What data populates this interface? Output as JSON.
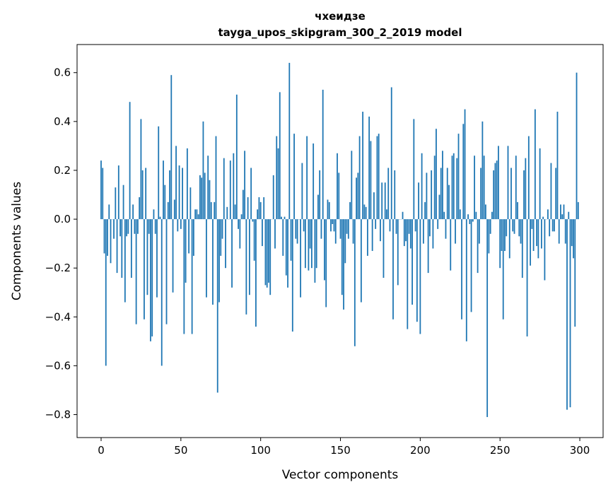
{
  "chart_data": {
    "type": "bar",
    "title_line1": "чхеидзе",
    "title_line2": "tayga_upos_skipgram_300_2_2019 model",
    "xlabel": "Vector components",
    "ylabel": "Components values",
    "xlim": [
      -15.06,
      314.6
    ],
    "ylim": [
      -0.894,
      0.715
    ],
    "xticks": [
      0,
      50,
      100,
      150,
      200,
      250,
      300
    ],
    "xtick_labels": [
      "0",
      "50",
      "100",
      "150",
      "200",
      "250",
      "300"
    ],
    "yticks": [
      0.6,
      0.4,
      0.2,
      0.0,
      -0.2,
      -0.4,
      -0.6,
      -0.8
    ],
    "ytick_labels": [
      "0.6",
      "0.4",
      "0.2",
      "0.0",
      "−0.2",
      "−0.4",
      "−0.6",
      "−0.8"
    ],
    "grid": false,
    "color": "#1f77b4",
    "values": [
      0.24,
      0.21,
      -0.14,
      -0.6,
      -0.15,
      0.06,
      -0.18,
      0.0,
      -0.08,
      0.13,
      -0.22,
      0.22,
      -0.07,
      -0.24,
      0.14,
      -0.34,
      -0.07,
      -0.06,
      0.48,
      -0.24,
      0.06,
      -0.06,
      -0.43,
      -0.06,
      0.09,
      0.41,
      0.2,
      -0.41,
      0.21,
      -0.31,
      -0.06,
      -0.5,
      -0.48,
      0.04,
      -0.06,
      -0.32,
      0.38,
      0.01,
      -0.6,
      0.24,
      0.14,
      -0.43,
      0.07,
      0.2,
      0.59,
      -0.3,
      0.08,
      0.3,
      -0.05,
      0.22,
      -0.04,
      0.21,
      -0.47,
      -0.26,
      0.29,
      -0.14,
      0.13,
      -0.47,
      -0.15,
      0.04,
      0.04,
      0.02,
      0.18,
      0.17,
      0.4,
      0.19,
      -0.32,
      0.26,
      0.16,
      0.07,
      -0.35,
      0.07,
      0.34,
      -0.71,
      -0.34,
      -0.15,
      -0.08,
      0.25,
      -0.2,
      0.05,
      0.0,
      0.24,
      -0.28,
      0.27,
      0.06,
      0.51,
      -0.04,
      -0.12,
      0.02,
      0.12,
      0.28,
      -0.39,
      0.09,
      -0.31,
      0.21,
      -0.01,
      -0.17,
      -0.44,
      0.04,
      0.09,
      0.07,
      -0.11,
      0.09,
      -0.27,
      -0.28,
      -0.26,
      -0.31,
      0.0,
      0.18,
      -0.12,
      0.34,
      0.29,
      0.52,
      0.01,
      -0.15,
      0.01,
      -0.23,
      -0.28,
      0.64,
      -0.17,
      -0.46,
      0.35,
      -0.08,
      -0.1,
      0.0,
      -0.32,
      0.23,
      -0.05,
      -0.2,
      0.34,
      -0.21,
      -0.12,
      -0.2,
      0.31,
      -0.26,
      -0.2,
      0.1,
      0.2,
      -0.08,
      0.53,
      -0.25,
      -0.36,
      0.08,
      0.07,
      -0.05,
      -0.02,
      -0.05,
      -0.1,
      0.27,
      0.19,
      -0.08,
      -0.31,
      -0.37,
      -0.18,
      -0.06,
      -0.08,
      0.07,
      0.28,
      -0.1,
      -0.52,
      0.17,
      0.19,
      0.34,
      -0.34,
      0.44,
      0.06,
      0.05,
      -0.15,
      0.42,
      0.32,
      -0.13,
      0.11,
      -0.04,
      0.34,
      0.35,
      -0.09,
      0.15,
      -0.24,
      0.15,
      0.04,
      0.21,
      -0.05,
      0.54,
      -0.41,
      0.2,
      -0.06,
      -0.27,
      0.0,
      0.0,
      0.03,
      -0.11,
      -0.09,
      -0.45,
      -0.06,
      -0.12,
      -0.35,
      0.41,
      -0.05,
      -0.42,
      0.15,
      -0.47,
      0.27,
      -0.1,
      0.07,
      0.19,
      -0.22,
      -0.07,
      0.2,
      -0.12,
      0.26,
      0.37,
      -0.04,
      0.1,
      0.21,
      0.28,
      0.03,
      -0.08,
      0.21,
      0.14,
      -0.21,
      0.26,
      0.27,
      -0.1,
      0.25,
      0.35,
      0.04,
      -0.41,
      0.39,
      0.45,
      -0.5,
      0.02,
      -0.02,
      -0.38,
      -0.01,
      0.26,
      0.03,
      -0.22,
      -0.1,
      0.21,
      0.4,
      0.26,
      0.06,
      -0.81,
      -0.14,
      -0.06,
      0.03,
      0.2,
      0.23,
      0.24,
      0.3,
      -0.2,
      -0.13,
      -0.41,
      -0.13,
      -0.07,
      0.3,
      -0.16,
      0.21,
      -0.05,
      -0.06,
      0.26,
      0.07,
      -0.07,
      -0.1,
      -0.24,
      0.2,
      0.25,
      -0.48,
      0.34,
      -0.19,
      -0.04,
      -0.13,
      0.45,
      -0.11,
      -0.16,
      0.29,
      -0.12,
      0.01,
      -0.25,
      0.0,
      0.04,
      -0.07,
      0.23,
      -0.05,
      -0.05,
      0.21,
      0.44,
      -0.1,
      0.06,
      0.02,
      0.06,
      -0.1,
      -0.78,
      0.03,
      -0.77,
      -0.11,
      -0.16,
      -0.44,
      0.6,
      0.07
    ]
  }
}
